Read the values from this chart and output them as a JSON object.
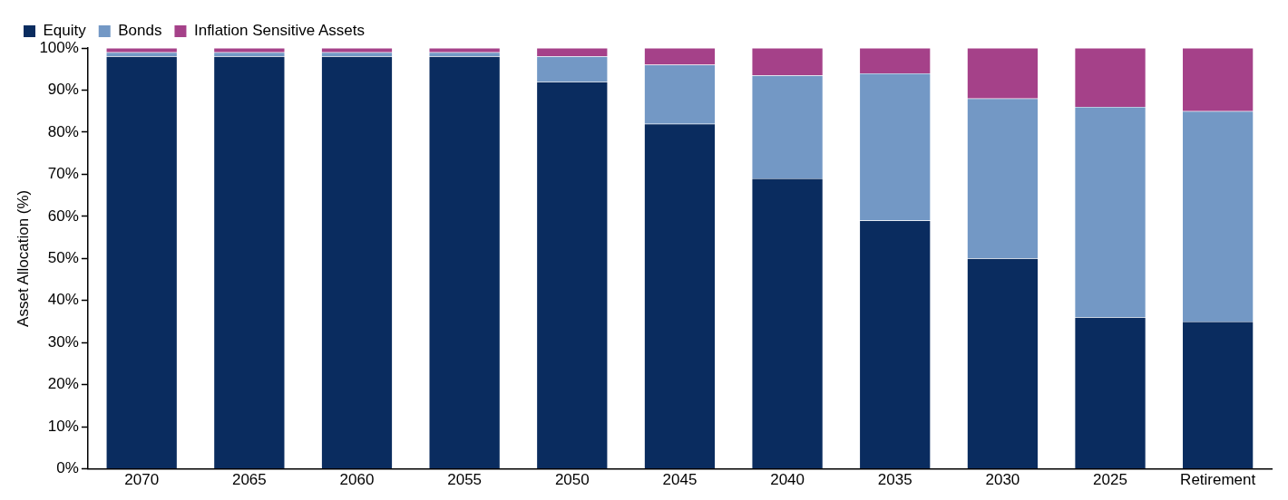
{
  "chart_data": {
    "type": "bar",
    "stacked": true,
    "ylabel": "Asset Allocation (%)",
    "categories": [
      "2070",
      "2065",
      "2060",
      "2055",
      "2050",
      "2045",
      "2040",
      "2035",
      "2030",
      "2025",
      "Retirement"
    ],
    "series": [
      {
        "name": "Equity",
        "color": "#0a2c5f",
        "values": [
          98,
          98,
          98,
          98,
          92,
          82,
          69,
          59,
          50,
          36,
          35
        ]
      },
      {
        "name": "Bonds",
        "color": "#7398c5",
        "values": [
          1,
          1,
          1,
          1,
          6,
          14,
          24.5,
          35,
          38,
          50,
          50
        ]
      },
      {
        "name": "Inflation Sensitive Assets",
        "color": "#a54189",
        "values": [
          1,
          1,
          1,
          1,
          2,
          4,
          6.5,
          6,
          12,
          14,
          15
        ]
      }
    ],
    "ylim": [
      0,
      100
    ],
    "yticks": [
      {
        "value": 0,
        "label": "0%"
      },
      {
        "value": 10,
        "label": "10%"
      },
      {
        "value": 20,
        "label": "20%"
      },
      {
        "value": 30,
        "label": "30%"
      },
      {
        "value": 40,
        "label": "40%"
      },
      {
        "value": 50,
        "label": "50%"
      },
      {
        "value": 60,
        "label": "60%"
      },
      {
        "value": 70,
        "label": "70%"
      },
      {
        "value": 80,
        "label": "80%"
      },
      {
        "value": 90,
        "label": "90%"
      },
      {
        "value": 100,
        "label": "100%"
      }
    ],
    "grid": false,
    "legend": "top left"
  }
}
